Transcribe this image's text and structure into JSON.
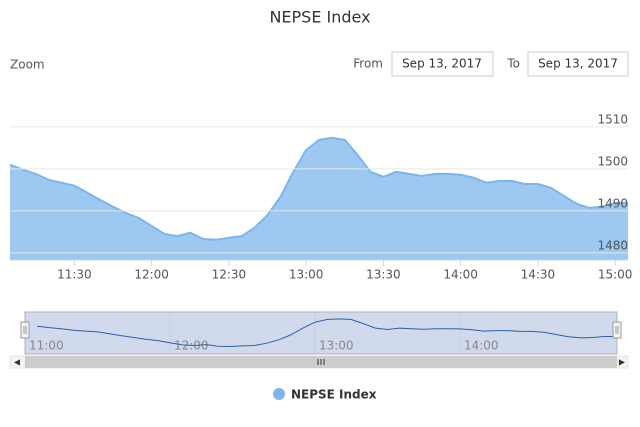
{
  "chart_data": {
    "type": "area",
    "title": "NEPSE Index",
    "x": [
      "11:05",
      "11:10",
      "11:15",
      "11:20",
      "11:25",
      "11:30",
      "11:35",
      "11:40",
      "11:45",
      "11:50",
      "11:55",
      "12:00",
      "12:05",
      "12:10",
      "12:15",
      "12:20",
      "12:25",
      "12:30",
      "12:35",
      "12:40",
      "12:45",
      "12:50",
      "12:55",
      "13:00",
      "13:05",
      "13:10",
      "13:15",
      "13:20",
      "13:25",
      "13:30",
      "13:35",
      "13:40",
      "13:45",
      "13:50",
      "13:55",
      "14:00",
      "14:05",
      "14:10",
      "14:15",
      "14:20",
      "14:25",
      "14:30",
      "14:35",
      "14:40",
      "14:45",
      "14:50",
      "14:55",
      "15:00",
      "15:05"
    ],
    "series": [
      {
        "name": "NEPSE Index",
        "color": "#7cb5ec",
        "values": [
          1501.0,
          1499.8,
          1498.8,
          1497.4,
          1496.7,
          1496.0,
          1494.3,
          1492.6,
          1491.0,
          1489.5,
          1488.3,
          1486.4,
          1484.5,
          1484.0,
          1484.8,
          1483.3,
          1483.1,
          1483.6,
          1484.0,
          1486.0,
          1489.0,
          1493.3,
          1499.3,
          1504.5,
          1506.9,
          1507.4,
          1506.9,
          1503.3,
          1499.3,
          1498.1,
          1499.3,
          1498.8,
          1498.3,
          1498.8,
          1498.8,
          1498.6,
          1497.9,
          1496.7,
          1497.1,
          1497.1,
          1496.4,
          1496.4,
          1495.5,
          1493.6,
          1491.7,
          1490.7,
          1491.0,
          1491.9,
          1491.9
        ]
      }
    ],
    "xlim": [
      "11:05",
      "15:05"
    ],
    "xticks": [
      "11:30",
      "12:00",
      "12:30",
      "13:00",
      "13:30",
      "14:00",
      "14:30",
      "15:00"
    ],
    "ylim": [
      1478.3,
      1518.3
    ],
    "yticks": [
      1480,
      1490,
      1500,
      1510
    ],
    "grid": true,
    "navigator": {
      "xlim": [
        "11:00",
        "15:05"
      ],
      "xticks": [
        "11:00",
        "12:00",
        "13:00",
        "14:00"
      ],
      "ylim": [
        1480,
        1510
      ]
    }
  },
  "range_selector": {
    "zoom_label": "Zoom",
    "from_label": "From",
    "from": "Sep 13, 2017",
    "to_label": "To",
    "to": "Sep 13, 2017"
  }
}
